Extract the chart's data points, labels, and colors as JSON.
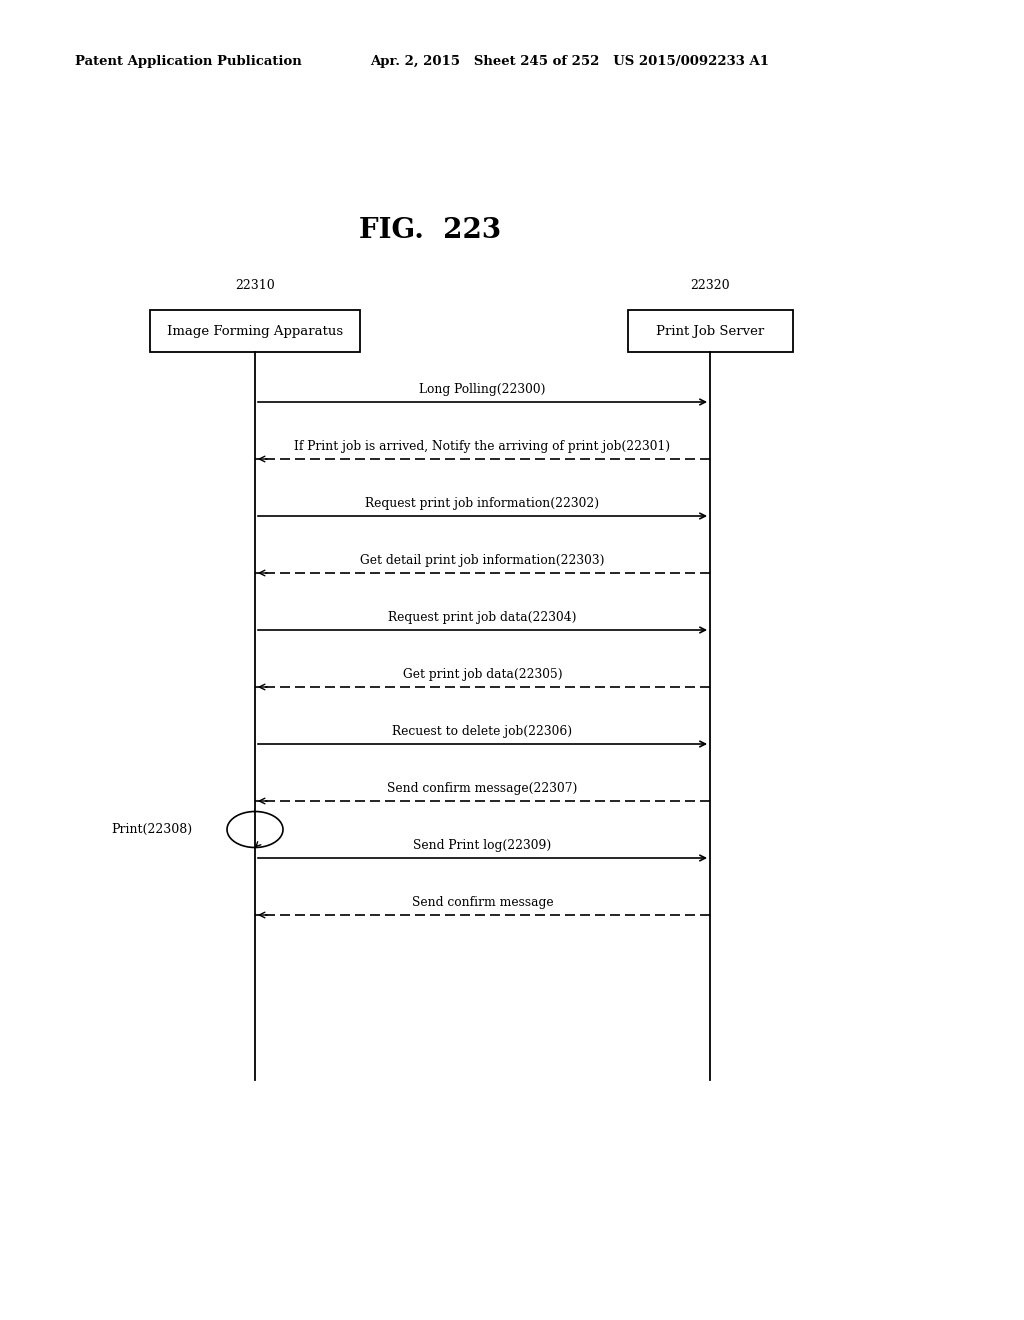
{
  "title": "FIG.  223",
  "header_left": "Patent Application Publication",
  "header_right": "Apr. 2, 2015   Sheet 245 of 252   US 2015/0092233 A1",
  "entity1_label": "22310",
  "entity1_box": "Image Forming Apparatus",
  "entity2_label": "22320",
  "entity2_box": "Print Job Server",
  "messages": [
    {
      "text": "Long Polling(22300)",
      "direction": "right",
      "style": "solid"
    },
    {
      "text": "If Print job is arrived, Notify the arriving of print job(22301)",
      "direction": "left",
      "style": "dashed"
    },
    {
      "text": "Request print job information(22302)",
      "direction": "right",
      "style": "solid"
    },
    {
      "text": "Get detail print job information(22303)",
      "direction": "left",
      "style": "dashed"
    },
    {
      "text": "Request print job data(22304)",
      "direction": "right",
      "style": "solid"
    },
    {
      "text": "Get print job data(22305)",
      "direction": "left",
      "style": "dashed"
    },
    {
      "text": "Recuest to delete job(22306)",
      "direction": "right",
      "style": "solid"
    },
    {
      "text": "Send confirm message(22307)",
      "direction": "left",
      "style": "dashed"
    },
    {
      "text": "Send Print log(22309)",
      "direction": "right",
      "style": "solid"
    },
    {
      "text": "Send confirm message",
      "direction": "left",
      "style": "dashed"
    }
  ],
  "self_loop_label": "Print(22308)",
  "self_loop_before_msg_idx": 8,
  "bg_color": "#ffffff",
  "text_color": "#000000",
  "box_color": "#000000",
  "line_color": "#000000"
}
